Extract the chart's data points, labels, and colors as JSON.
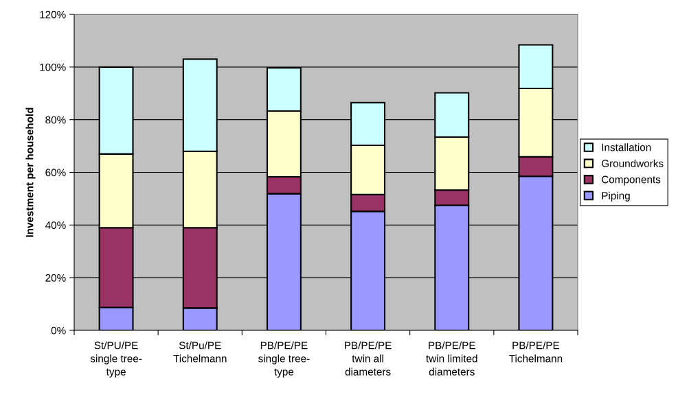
{
  "chart_data": {
    "type": "bar",
    "stacked": true,
    "ylabel": "Investment per household",
    "categories": [
      "St/PU/PE\nsingle tree-\ntype",
      "St/Pu/PE\nTichelmann",
      "PB/PE/PE\nsingle tree-\ntype",
      "PB/PE/PE\ntwin all\ndiameters",
      "PB/PE/PE\ntwin limited\ndiameters",
      "PB/PE/PE\nTichelmann"
    ],
    "series": [
      {
        "name": "Piping",
        "color": "#9999ff",
        "values": [
          8.7,
          8.5,
          51.9,
          45.2,
          47.5,
          58.5
        ]
      },
      {
        "name": "Components",
        "color": "#993366",
        "values": [
          30.3,
          30.5,
          6.4,
          6.4,
          5.8,
          7.4
        ]
      },
      {
        "name": "Groundworks",
        "color": "#ffffcc",
        "values": [
          28,
          29,
          25,
          18.7,
          20.1,
          26
        ]
      },
      {
        "name": "Installation",
        "color": "#ccffff",
        "values": [
          33,
          35,
          16.4,
          16.2,
          16.8,
          16.5
        ]
      }
    ],
    "ylim": [
      0,
      120
    ],
    "yticks": [
      {
        "value": 0,
        "label": "0%"
      },
      {
        "value": 20,
        "label": "20%"
      },
      {
        "value": 40,
        "label": "40%"
      },
      {
        "value": 60,
        "label": "60%"
      },
      {
        "value": 80,
        "label": "80%"
      },
      {
        "value": 100,
        "label": "100%"
      },
      {
        "value": 120,
        "label": "120%"
      }
    ],
    "grid": "y",
    "legend": "right"
  }
}
